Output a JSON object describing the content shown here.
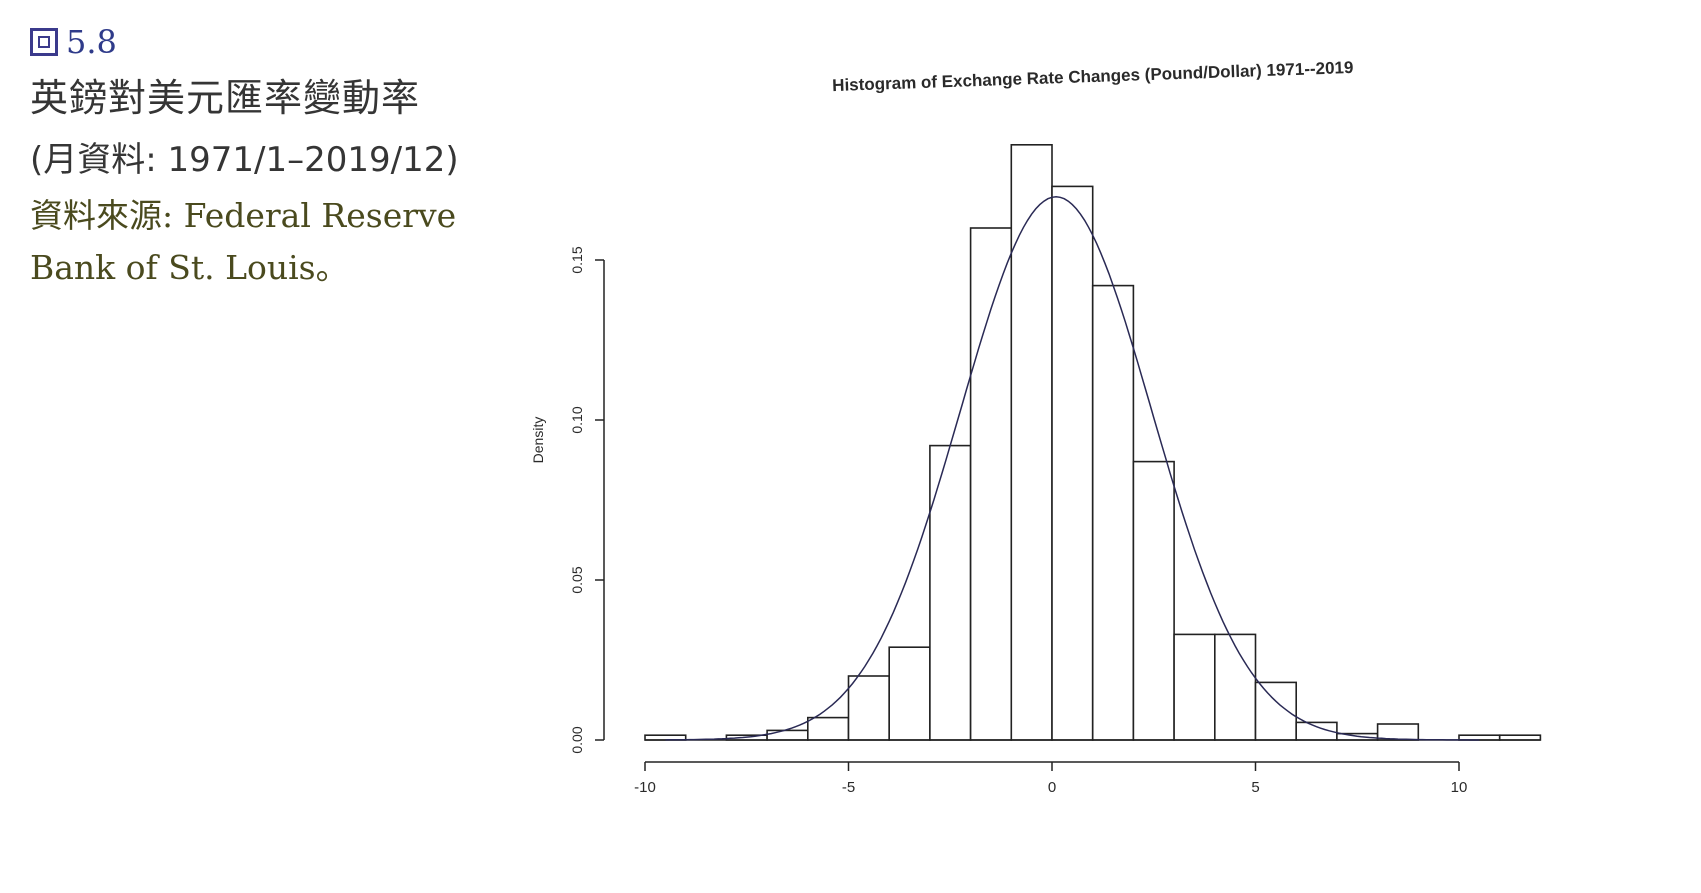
{
  "caption": {
    "figure_label": "5.8",
    "title": "英鎊對美元匯率變動率",
    "range": "(月資料: 1971/1–2019/12)",
    "source_line1": "資料來源: Federal Reserve",
    "source_line2": "Bank of St. Louis。"
  },
  "chart_data": {
    "type": "bar",
    "title": "Histogram of Exchange Rate Changes (Pound/Dollar) 1971--2019",
    "xlabel": "",
    "ylabel": "Density",
    "xlim": [
      -10,
      12
    ],
    "ylim": [
      0,
      0.17
    ],
    "xticks": [
      "-10",
      "-5",
      "0",
      "5",
      "10"
    ],
    "yticks": [
      "0.00",
      "0.05",
      "0.10",
      "0.15"
    ],
    "bin_width": 1,
    "bins": [
      {
        "x0": -10,
        "x1": -9,
        "density": 0.0015
      },
      {
        "x0": -9,
        "x1": -8,
        "density": 0.0
      },
      {
        "x0": -8,
        "x1": -7,
        "density": 0.0015
      },
      {
        "x0": -7,
        "x1": -6,
        "density": 0.003
      },
      {
        "x0": -6,
        "x1": -5,
        "density": 0.007
      },
      {
        "x0": -5,
        "x1": -4,
        "density": 0.02
      },
      {
        "x0": -4,
        "x1": -3,
        "density": 0.029
      },
      {
        "x0": -3,
        "x1": -2,
        "density": 0.092
      },
      {
        "x0": -2,
        "x1": -1,
        "density": 0.16
      },
      {
        "x0": -1,
        "x1": 0,
        "density": 0.186
      },
      {
        "x0": 0,
        "x1": 1,
        "density": 0.173
      },
      {
        "x0": 1,
        "x1": 2,
        "density": 0.142
      },
      {
        "x0": 2,
        "x1": 3,
        "density": 0.087
      },
      {
        "x0": 3,
        "x1": 4,
        "density": 0.033
      },
      {
        "x0": 4,
        "x1": 5,
        "density": 0.033
      },
      {
        "x0": 5,
        "x1": 6,
        "density": 0.018
      },
      {
        "x0": 6,
        "x1": 7,
        "density": 0.0055
      },
      {
        "x0": 7,
        "x1": 8,
        "density": 0.002
      },
      {
        "x0": 8,
        "x1": 9,
        "density": 0.005
      },
      {
        "x0": 9,
        "x1": 10,
        "density": 0.0
      },
      {
        "x0": 10,
        "x1": 11,
        "density": 0.0015
      },
      {
        "x0": 11,
        "x1": 12,
        "density": 0.0015
      }
    ],
    "density_curve": {
      "type": "normal",
      "mean": 0.1,
      "sd": 2.35
    }
  }
}
